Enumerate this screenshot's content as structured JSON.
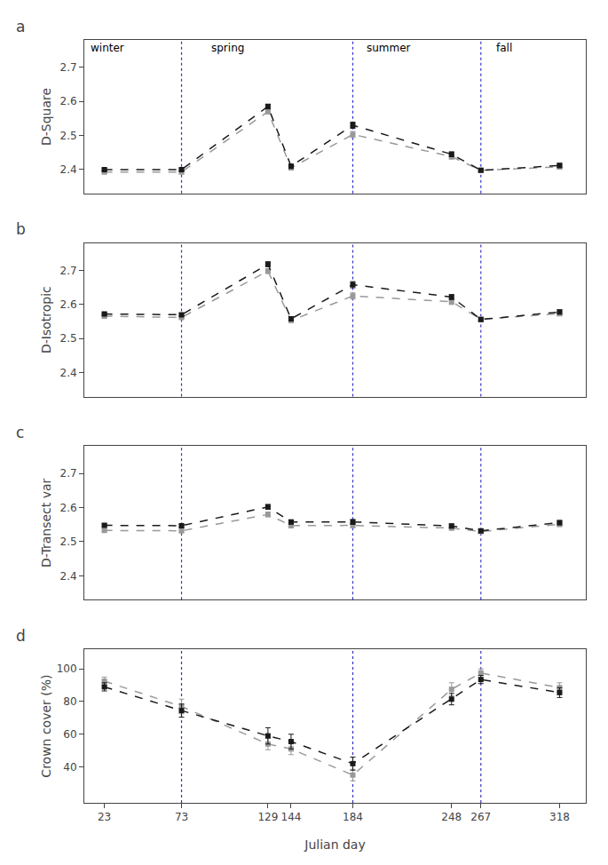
{
  "chart_data": [
    {
      "type": "line",
      "title": "a",
      "ylabel": "D-Square",
      "x": [
        23,
        73,
        129,
        144,
        184,
        248,
        267,
        318
      ],
      "xlim": [
        10,
        335
      ],
      "xticks": [
        23,
        73,
        129,
        144,
        184,
        248,
        267,
        318
      ],
      "ylim": [
        2.33,
        2.78
      ],
      "yticks": [
        2.4,
        2.5,
        2.6,
        2.7
      ],
      "grid": false,
      "tick_labels": "y",
      "series": [
        {
          "color": "#999999",
          "marker": "square",
          "line_style": "dashed",
          "values": [
            2.393,
            2.393,
            2.57,
            2.405,
            2.503,
            2.438,
            2.398,
            2.408
          ],
          "errors": [
            0.004,
            0.004,
            0.006,
            0.006,
            0.009,
            0.007,
            0.004,
            0.006
          ]
        },
        {
          "color": "#1a1a1a",
          "marker": "square",
          "line_style": "dashed",
          "values": [
            2.4,
            2.4,
            2.585,
            2.41,
            2.53,
            2.445,
            2.398,
            2.412
          ],
          "errors": [
            0.004,
            0.004,
            0.007,
            0.006,
            0.009,
            0.007,
            0.004,
            0.006
          ]
        }
      ],
      "vlines": {
        "x": [
          73,
          184,
          267
        ],
        "color": "#3333cc",
        "line_style": "dotted"
      },
      "annotations": [
        {
          "text": "winter",
          "x": 13
        },
        {
          "text": "spring",
          "x": 91
        },
        {
          "text": "summer",
          "x": 192
        },
        {
          "text": "fall",
          "x": 276
        }
      ]
    },
    {
      "type": "line",
      "title": "b",
      "ylabel": "D-Isotropic",
      "x": [
        23,
        73,
        129,
        144,
        184,
        248,
        267,
        318
      ],
      "xlim": [
        10,
        335
      ],
      "xticks": [
        23,
        73,
        129,
        144,
        184,
        248,
        267,
        318
      ],
      "ylim": [
        2.33,
        2.78
      ],
      "yticks": [
        2.4,
        2.5,
        2.6,
        2.7
      ],
      "grid": false,
      "tick_labels": "y",
      "series": [
        {
          "color": "#999999",
          "marker": "square",
          "line_style": "dashed",
          "values": [
            2.566,
            2.562,
            2.698,
            2.553,
            2.625,
            2.608,
            2.557,
            2.573
          ],
          "errors": [
            0.004,
            0.004,
            0.007,
            0.006,
            0.009,
            0.008,
            0.005,
            0.006
          ]
        },
        {
          "color": "#1a1a1a",
          "marker": "square",
          "line_style": "dashed",
          "values": [
            2.572,
            2.57,
            2.718,
            2.558,
            2.658,
            2.622,
            2.556,
            2.578
          ],
          "errors": [
            0.004,
            0.004,
            0.007,
            0.006,
            0.009,
            0.007,
            0.005,
            0.006
          ]
        }
      ],
      "vlines": {
        "x": [
          73,
          184,
          267
        ],
        "color": "#3333cc",
        "line_style": "dotted"
      }
    },
    {
      "type": "line",
      "title": "c",
      "ylabel": "D-Transect var",
      "x": [
        23,
        73,
        129,
        144,
        184,
        248,
        267,
        318
      ],
      "xlim": [
        10,
        335
      ],
      "xticks": [
        23,
        73,
        129,
        144,
        184,
        248,
        267,
        318
      ],
      "ylim": [
        2.33,
        2.78
      ],
      "yticks": [
        2.4,
        2.5,
        2.6,
        2.7
      ],
      "grid": false,
      "tick_labels": "y",
      "series": [
        {
          "color": "#999999",
          "marker": "square",
          "line_style": "dashed",
          "values": [
            2.533,
            2.532,
            2.58,
            2.547,
            2.548,
            2.54,
            2.53,
            2.551
          ],
          "errors": [
            0.004,
            0.004,
            0.007,
            0.006,
            0.007,
            0.006,
            0.005,
            0.006
          ]
        },
        {
          "color": "#1a1a1a",
          "marker": "square",
          "line_style": "dashed",
          "values": [
            2.548,
            2.547,
            2.602,
            2.558,
            2.558,
            2.546,
            2.532,
            2.556
          ],
          "errors": [
            0.004,
            0.004,
            0.007,
            0.006,
            0.007,
            0.006,
            0.005,
            0.006
          ]
        }
      ],
      "vlines": {
        "x": [
          73,
          184,
          267
        ],
        "color": "#3333cc",
        "line_style": "dotted"
      }
    },
    {
      "type": "line",
      "title": "d",
      "ylabel": "Crown cover (%)",
      "xlabel": "Julian day",
      "x": [
        23,
        73,
        129,
        144,
        184,
        248,
        267,
        318
      ],
      "xlim": [
        10,
        335
      ],
      "xticks": [
        23,
        73,
        129,
        144,
        184,
        248,
        267,
        318
      ],
      "ylim": [
        18,
        112
      ],
      "yticks": [
        40,
        60,
        80,
        100
      ],
      "grid": false,
      "series": [
        {
          "color": "#999999",
          "marker": "square",
          "line_style": "dashed",
          "values": [
            92.5,
            77.0,
            54.0,
            51.0,
            35.0,
            87.5,
            97.5,
            88.5
          ],
          "errors": [
            2.5,
            4.5,
            3.5,
            3.5,
            3.5,
            4.0,
            2.5,
            3.0
          ]
        },
        {
          "color": "#1a1a1a",
          "marker": "square",
          "line_style": "dashed",
          "values": [
            89.0,
            74.5,
            59.0,
            55.5,
            42.0,
            81.5,
            93.5,
            85.5
          ],
          "errors": [
            2.5,
            4.0,
            5.0,
            4.5,
            4.0,
            3.5,
            2.5,
            3.0
          ]
        }
      ],
      "vlines": {
        "x": [
          73,
          184,
          267
        ],
        "color": "#3333cc",
        "line_style": "dotted"
      }
    }
  ]
}
